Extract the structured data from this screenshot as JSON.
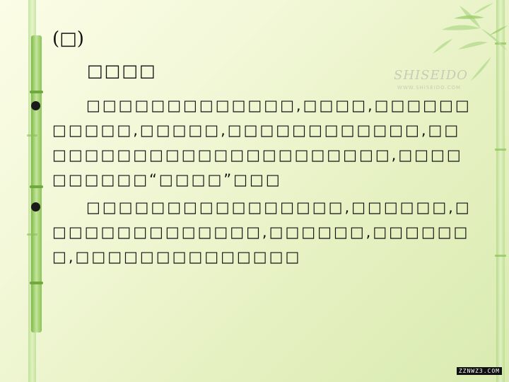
{
  "slide": {
    "heading": "(□)",
    "subheading": "□□□□",
    "paragraphs": [
      "□□□□□□□□□□□□□,□□□□,□□□□□□□□□□□,□□□□□,□□□□□□□□□□□□,□□□□□□□□□□□□□□□□□□□□□□□,□□□□□□□□□□“□□□□”□□□",
      "□□□□□□□□□□□□□□□□,□□□□□□,□□□□□□□□□□□□□□,□□□□□□,□□□□□□□,□□□□□□□□□□□□□□"
    ]
  },
  "brand": {
    "name": "SHISEIDO",
    "url": "WWW.SHISEIDO.COM"
  },
  "watermark": "ZZNWZ3.COM",
  "colors": {
    "background": "#f3f8d9",
    "bamboo": "#a9d37a",
    "text": "#111111"
  }
}
